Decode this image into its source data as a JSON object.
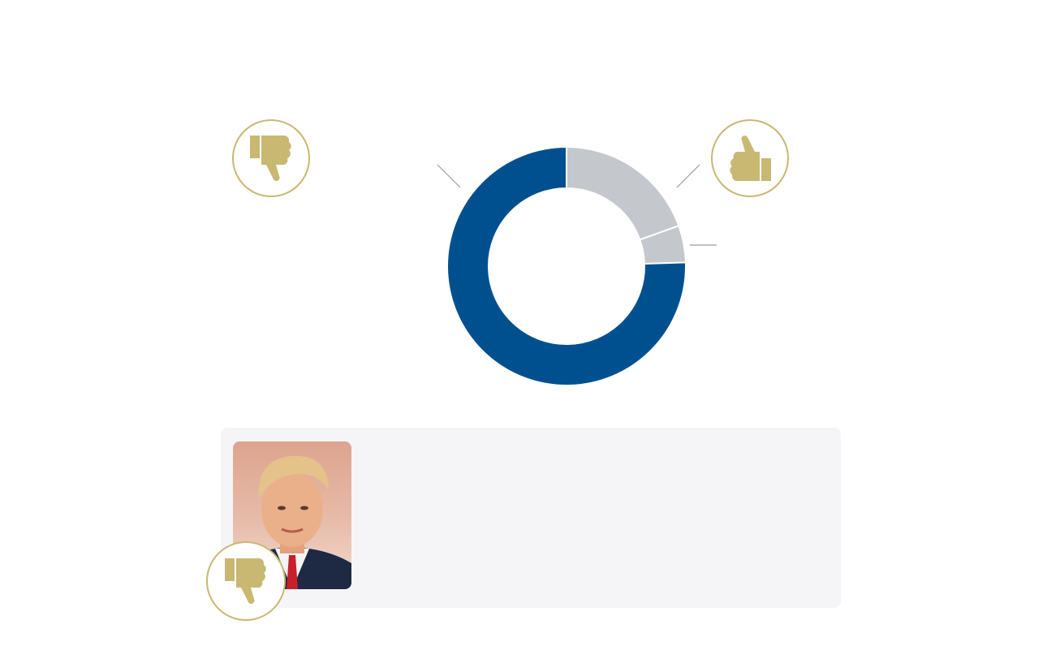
{
  "chart_data": {
    "type": "pie",
    "donut": true,
    "slices": [
      {
        "value": 19.5,
        "color": "#c4c7cc"
      },
      {
        "value": 5.0,
        "color": "#c4c7cc"
      },
      {
        "value": 75.5,
        "color": "#00508f"
      }
    ],
    "legend": "none"
  },
  "icons": {
    "disapprove": "thumbs-down-icon",
    "approve": "thumbs-up-icon",
    "card": "thumbs-down-icon",
    "icon_color": "#c8b872"
  },
  "card": {
    "photo": "portrait-photo"
  },
  "colors": {
    "accent": "#00508f",
    "neutral": "#c4c7cc",
    "gold": "#c8b872",
    "card_bg": "#f5f5f7"
  }
}
